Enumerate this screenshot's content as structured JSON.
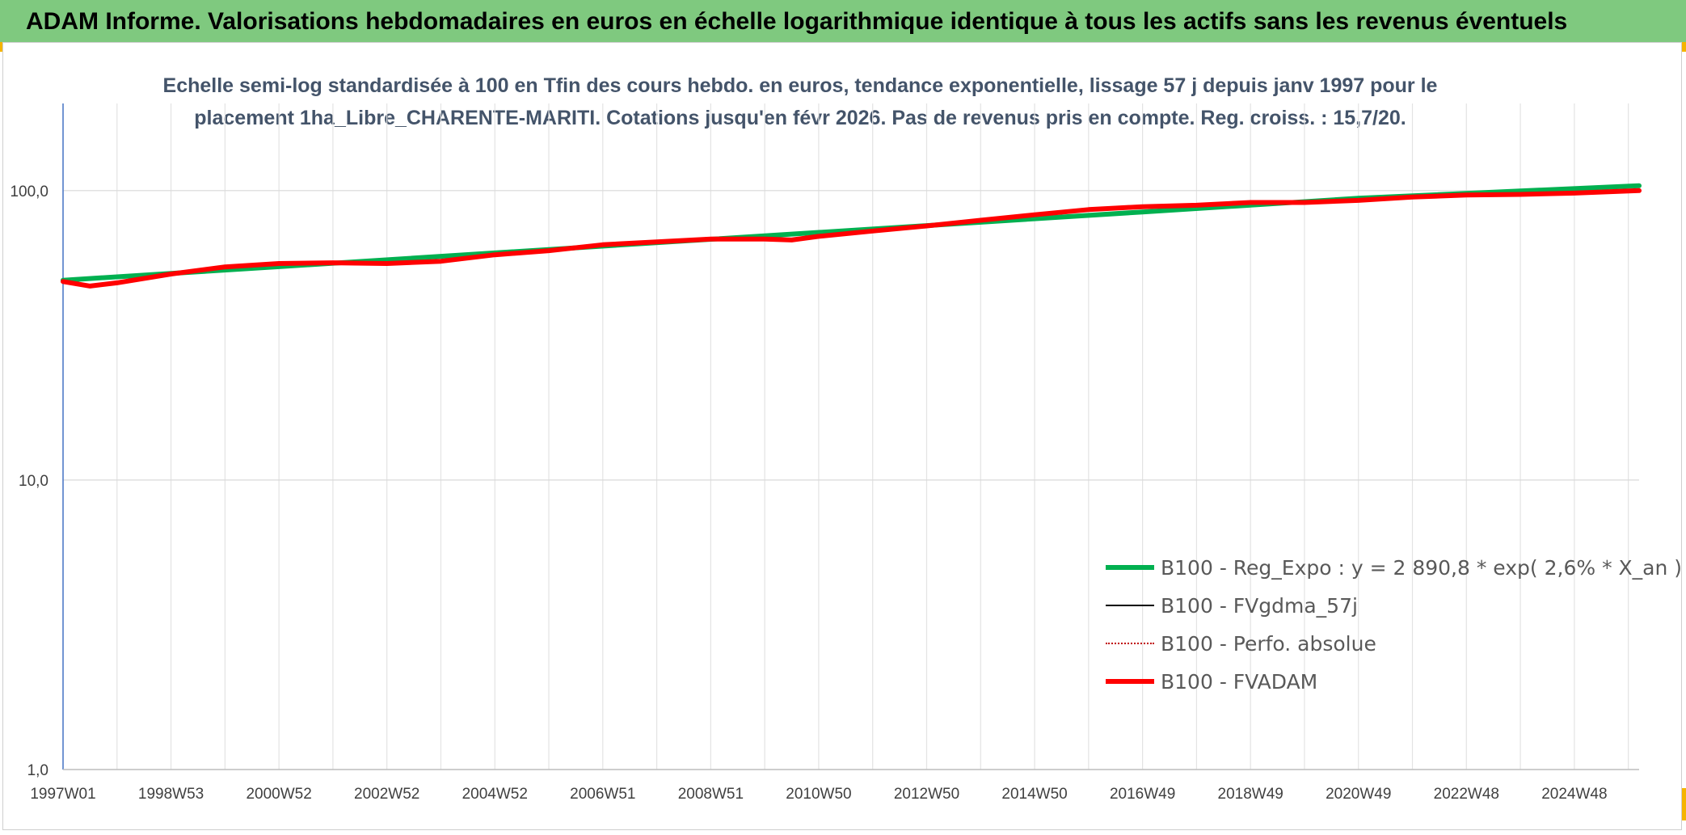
{
  "header": {
    "title": "ADAM Informe. Valorisations hebdomadaires en euros en échelle logarithmique identique à tous les actifs sans les revenus éventuels"
  },
  "chart_data": {
    "type": "line",
    "title_line1": "Echelle semi-log standardisée à 100 en Tfin des cours hebdo. en euros, tendance exponentielle, lissage 57 j depuis janv 1997 pour le",
    "title_line2": "placement 1ha_Libre_CHARENTE-MARITI. Cotations jusqu'en févr 2026. Pas de revenus pris en compte. Reg. croiss. : 15,7/20.",
    "y_scale": "log",
    "ylim": [
      1,
      200
    ],
    "y_ticks": [
      {
        "value": 1,
        "label": "1,0"
      },
      {
        "value": 10,
        "label": "10,0"
      },
      {
        "value": 100,
        "label": "100,0"
      }
    ],
    "xlim": [
      1997.0,
      2026.2
    ],
    "x_ticks": [
      {
        "value": 1997.0,
        "label": "1997W01"
      },
      {
        "value": 1999.0,
        "label": "1998W53"
      },
      {
        "value": 2001.0,
        "label": "2000W52"
      },
      {
        "value": 2003.0,
        "label": "2002W52"
      },
      {
        "value": 2005.0,
        "label": "2004W52"
      },
      {
        "value": 2007.0,
        "label": "2006W51"
      },
      {
        "value": 2009.0,
        "label": "2008W51"
      },
      {
        "value": 2011.0,
        "label": "2010W50"
      },
      {
        "value": 2013.0,
        "label": "2012W50"
      },
      {
        "value": 2015.0,
        "label": "2014W50"
      },
      {
        "value": 2017.0,
        "label": "2016W49"
      },
      {
        "value": 2019.0,
        "label": "2018W49"
      },
      {
        "value": 2021.0,
        "label": "2020W49"
      },
      {
        "value": 2023.0,
        "label": "2022W48"
      },
      {
        "value": 2025.0,
        "label": "2024W48"
      }
    ],
    "grid": true,
    "legend_position": "right",
    "series": [
      {
        "name": "B100 - Reg_Expo : y = 2 890,8 * exp( 2,6% *  X_an )",
        "color": "#00b050",
        "style": "solid-thick",
        "points": [
          [
            1997.0,
            49.0
          ],
          [
            2001.0,
            54.6
          ],
          [
            2005.0,
            60.9
          ],
          [
            2009.0,
            67.9
          ],
          [
            2013.0,
            75.7
          ],
          [
            2017.0,
            84.4
          ],
          [
            2021.0,
            94.1
          ],
          [
            2026.2,
            104.0
          ]
        ]
      },
      {
        "name": "B100 - FVgdma_57j",
        "color": "#000000",
        "style": "solid-thin",
        "points": []
      },
      {
        "name": "B100 - Perfo. absolue",
        "color": "#c00000",
        "style": "dotted",
        "points": []
      },
      {
        "name": "B100 - FVADAM",
        "color": "#ff0000",
        "style": "solid-thick",
        "points": [
          [
            1997.0,
            48.5
          ],
          [
            1997.5,
            46.8
          ],
          [
            1998.0,
            48.0
          ],
          [
            1999.0,
            51.5
          ],
          [
            2000.0,
            54.5
          ],
          [
            2001.0,
            56.0
          ],
          [
            2002.0,
            56.3
          ],
          [
            2003.0,
            56.0
          ],
          [
            2004.0,
            57.0
          ],
          [
            2005.0,
            60.0
          ],
          [
            2006.0,
            62.0
          ],
          [
            2007.0,
            65.0
          ],
          [
            2008.0,
            66.5
          ],
          [
            2009.0,
            68.0
          ],
          [
            2010.0,
            68.0
          ],
          [
            2010.5,
            67.5
          ],
          [
            2011.0,
            69.5
          ],
          [
            2012.0,
            72.5
          ],
          [
            2013.0,
            75.5
          ],
          [
            2014.0,
            79.0
          ],
          [
            2015.0,
            82.5
          ],
          [
            2016.0,
            86.0
          ],
          [
            2017.0,
            88.0
          ],
          [
            2018.0,
            89.0
          ],
          [
            2019.0,
            91.0
          ],
          [
            2020.0,
            91.0
          ],
          [
            2021.0,
            92.5
          ],
          [
            2022.0,
            95.0
          ],
          [
            2023.0,
            96.5
          ],
          [
            2024.0,
            97.0
          ],
          [
            2025.0,
            98.0
          ],
          [
            2026.2,
            100.0
          ]
        ]
      }
    ]
  }
}
